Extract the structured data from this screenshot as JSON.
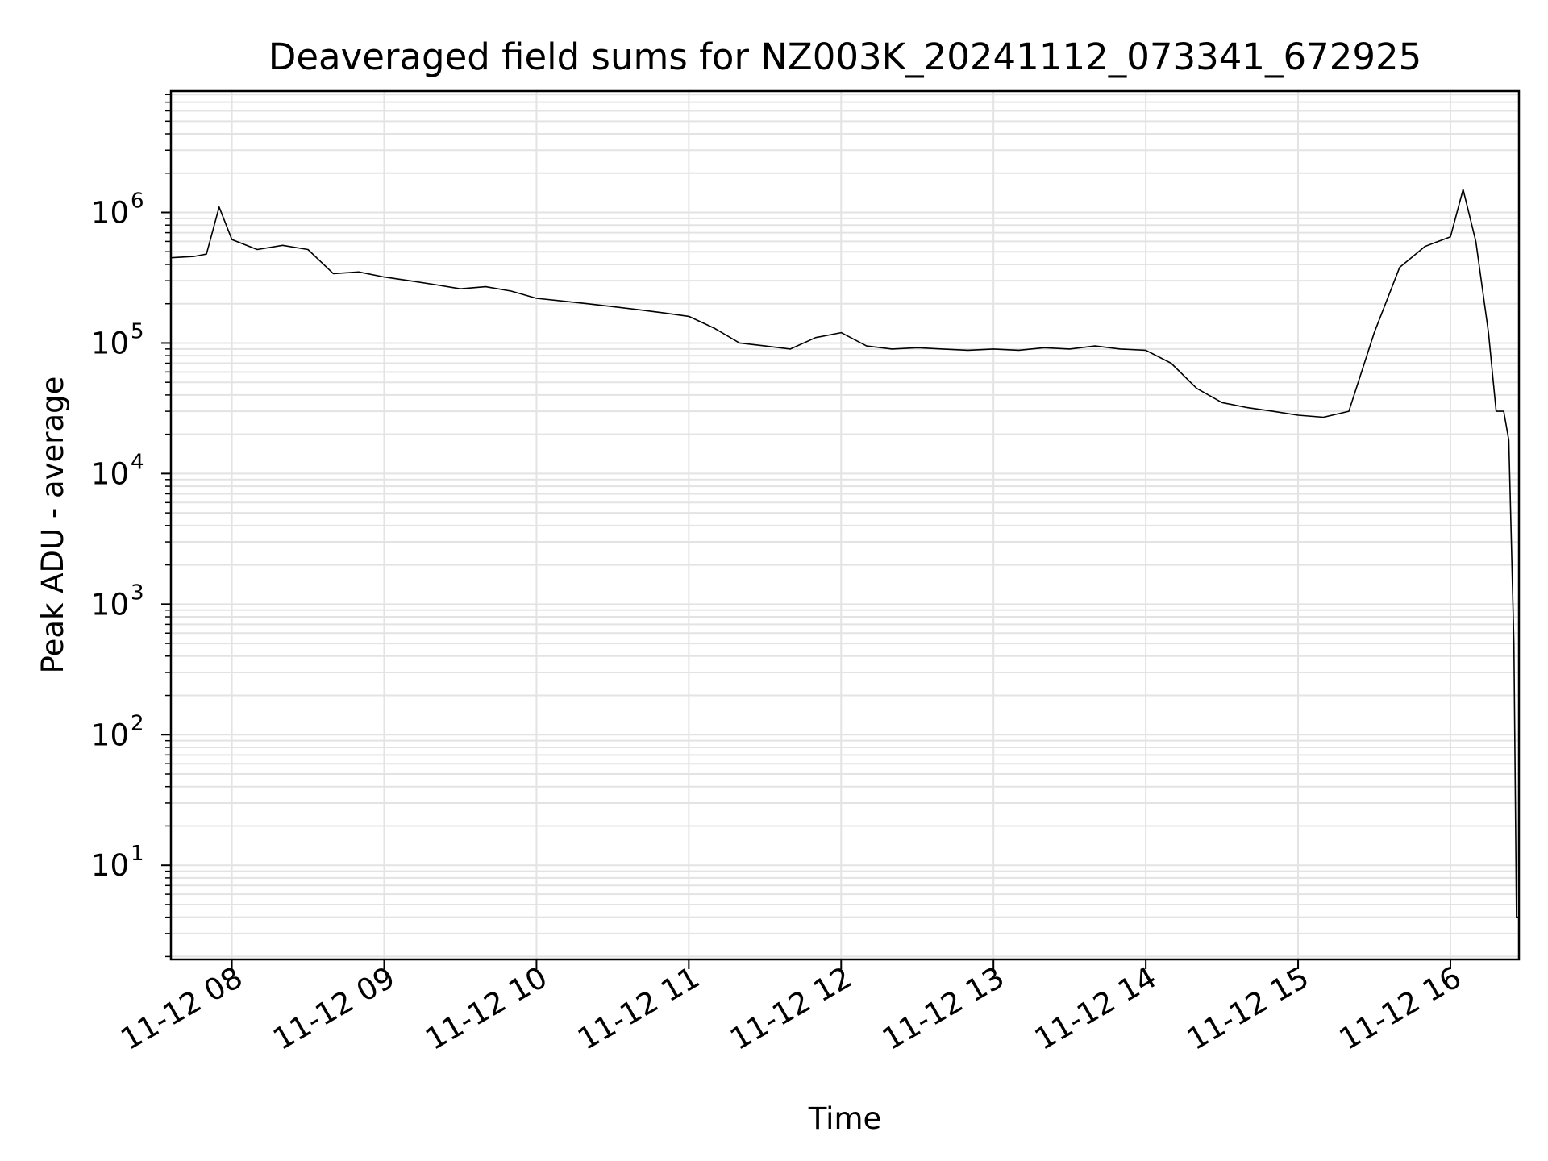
{
  "chart_data": {
    "type": "line",
    "title": "Deaveraged field sums for NZ003K_20241112_073341_672925",
    "xlabel": "Time",
    "ylabel": "Peak ADU - average",
    "yscale": "log",
    "ylim": [
      1.9,
      8500000
    ],
    "xlim": [
      "2024-11-12 07:36",
      "2024-11-12 16:27"
    ],
    "grid": true,
    "line_color": "#000000",
    "grid_color": "#e3e3e3",
    "x_ticks": [
      {
        "value": "2024-11-12 08:00",
        "label": "11-12 08"
      },
      {
        "value": "2024-11-12 09:00",
        "label": "11-12 09"
      },
      {
        "value": "2024-11-12 10:00",
        "label": "11-12 10"
      },
      {
        "value": "2024-11-12 11:00",
        "label": "11-12 11"
      },
      {
        "value": "2024-11-12 12:00",
        "label": "11-12 12"
      },
      {
        "value": "2024-11-12 13:00",
        "label": "11-12 13"
      },
      {
        "value": "2024-11-12 14:00",
        "label": "11-12 14"
      },
      {
        "value": "2024-11-12 15:00",
        "label": "11-12 15"
      },
      {
        "value": "2024-11-12 16:00",
        "label": "11-12 16"
      }
    ],
    "y_ticks": [
      {
        "value": 10,
        "base": "10",
        "exp": "1"
      },
      {
        "value": 100,
        "base": "10",
        "exp": "2"
      },
      {
        "value": 1000,
        "base": "10",
        "exp": "3"
      },
      {
        "value": 10000,
        "base": "10",
        "exp": "4"
      },
      {
        "value": 100000,
        "base": "10",
        "exp": "5"
      },
      {
        "value": 1000000,
        "base": "10",
        "exp": "6"
      }
    ],
    "series": [
      {
        "points": [
          [
            "07:36",
            450000
          ],
          [
            "07:45",
            460000
          ],
          [
            "07:50",
            480000
          ],
          [
            "07:55",
            1100000
          ],
          [
            "08:00",
            620000
          ],
          [
            "08:10",
            520000
          ],
          [
            "08:20",
            560000
          ],
          [
            "08:30",
            520000
          ],
          [
            "08:40",
            340000
          ],
          [
            "08:50",
            350000
          ],
          [
            "09:00",
            320000
          ],
          [
            "09:10",
            300000
          ],
          [
            "09:20",
            280000
          ],
          [
            "09:30",
            260000
          ],
          [
            "09:40",
            270000
          ],
          [
            "09:50",
            250000
          ],
          [
            "10:00",
            220000
          ],
          [
            "10:10",
            210000
          ],
          [
            "10:20",
            200000
          ],
          [
            "10:30",
            190000
          ],
          [
            "10:40",
            180000
          ],
          [
            "10:50",
            170000
          ],
          [
            "11:00",
            160000
          ],
          [
            "11:10",
            130000
          ],
          [
            "11:20",
            100000
          ],
          [
            "11:30",
            95000
          ],
          [
            "11:40",
            90000
          ],
          [
            "11:50",
            110000
          ],
          [
            "12:00",
            120000
          ],
          [
            "12:10",
            95000
          ],
          [
            "12:20",
            90000
          ],
          [
            "12:30",
            92000
          ],
          [
            "12:40",
            90000
          ],
          [
            "12:50",
            88000
          ],
          [
            "13:00",
            90000
          ],
          [
            "13:10",
            88000
          ],
          [
            "13:20",
            92000
          ],
          [
            "13:30",
            90000
          ],
          [
            "13:40",
            95000
          ],
          [
            "13:50",
            90000
          ],
          [
            "14:00",
            88000
          ],
          [
            "14:10",
            70000
          ],
          [
            "14:20",
            45000
          ],
          [
            "14:30",
            35000
          ],
          [
            "14:40",
            32000
          ],
          [
            "14:50",
            30000
          ],
          [
            "15:00",
            28000
          ],
          [
            "15:10",
            27000
          ],
          [
            "15:20",
            30000
          ],
          [
            "15:30",
            120000
          ],
          [
            "15:40",
            380000
          ],
          [
            "15:50",
            550000
          ],
          [
            "16:00",
            650000
          ],
          [
            "16:05",
            1500000
          ],
          [
            "16:10",
            600000
          ],
          [
            "16:15",
            120000
          ],
          [
            "16:18",
            30000
          ],
          [
            "16:21",
            30000
          ],
          [
            "16:23",
            18000
          ],
          [
            "16:25",
            500
          ],
          [
            "16:26",
            4
          ],
          [
            "16:27",
            4
          ]
        ]
      }
    ]
  }
}
